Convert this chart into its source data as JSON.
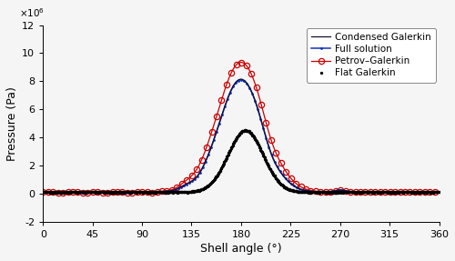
{
  "xlabel": "Shell angle (°)",
  "ylabel": "Pressure (Pa)",
  "xlim": [
    0,
    360
  ],
  "ylim": [
    -2000000.0,
    12000000.0
  ],
  "xticks": [
    0,
    45,
    90,
    135,
    180,
    225,
    270,
    315,
    360
  ],
  "yticks_vals": [
    -2,
    0,
    2,
    4,
    6,
    8,
    10,
    12
  ],
  "legend_labels": [
    "Flat Galerkin",
    "Condensed Galerkin",
    "Petrov–Galerkin",
    "Full solution"
  ],
  "flat_color": "#000000",
  "condensed_color": "#111133",
  "petrov_color": "#cc0000",
  "full_color": "#1133bb",
  "baseline": 105000.0
}
